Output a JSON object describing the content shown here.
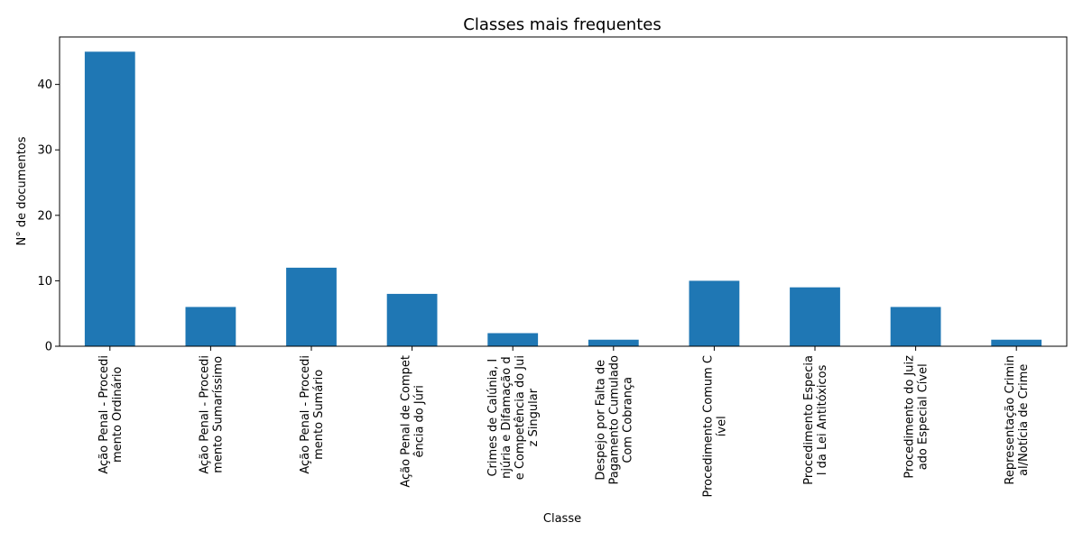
{
  "chart_data": {
    "type": "bar",
    "title": "Classes mais frequentes",
    "xlabel": "Classe",
    "ylabel": "N° de documentos",
    "ylim": [
      0,
      47.25
    ],
    "yticks": [
      0,
      10,
      20,
      30,
      40
    ],
    "grid": false,
    "bar_color": "#1f77b4",
    "categories": [
      [
        "Ação Penal - Procedi",
        "mento Ordinário"
      ],
      [
        "Ação Penal - Procedi",
        "mento Sumaríssimo"
      ],
      [
        "Ação Penal - Procedi",
        "mento Sumário"
      ],
      [
        "Ação Penal de Compet",
        "ência do Júri"
      ],
      [
        "Crimes de Calúnia, I",
        "njúria e Difamação d",
        "e Competência do Jui",
        "z Singular"
      ],
      [
        "Despejo por Falta de",
        "Pagamento Cumulado",
        "Com Cobrança"
      ],
      [
        "Procedimento Comum C",
        "ível"
      ],
      [
        "Procedimento Especia",
        "l da Lei Antitóxicos"
      ],
      [
        "Procedimento do Juiz",
        "ado Especial Cível"
      ],
      [
        "Representação Crimin",
        "al/Notícia de Crime"
      ]
    ],
    "values": [
      45,
      6,
      12,
      8,
      2,
      1,
      10,
      9,
      6,
      1
    ]
  }
}
